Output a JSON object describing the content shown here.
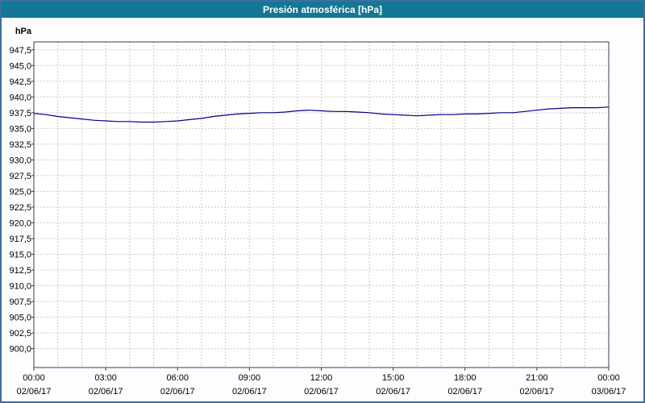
{
  "title": "Presión atmosférica [hPa]",
  "colors": {
    "titlebar_bg": "#137795",
    "titlebar_text": "#FFFFFF",
    "outer_border": "#3E6E9E",
    "page_bg": "#FDFDFF",
    "plot_bg": "#FFFFFF",
    "plot_border": "#3C3C50",
    "grid": "#C9C9C9",
    "axis_text": "#000000",
    "line": "#00008B"
  },
  "chart_data": {
    "type": "line",
    "title": "Presión atmosférica [hPa]",
    "ylabel": "hPa",
    "xlabel": "",
    "ylim": [
      897.0,
      948.75
    ],
    "xlim_hours": [
      0,
      24
    ],
    "grid": "dashed",
    "legend": "none",
    "y_ticks": [
      {
        "value": 947.5,
        "label": "947,5"
      },
      {
        "value": 945.0,
        "label": "945,0"
      },
      {
        "value": 942.5,
        "label": "942,5"
      },
      {
        "value": 940.0,
        "label": "940,0"
      },
      {
        "value": 937.5,
        "label": "937,5"
      },
      {
        "value": 935.0,
        "label": "935,0"
      },
      {
        "value": 932.5,
        "label": "932,5"
      },
      {
        "value": 930.0,
        "label": "930,0"
      },
      {
        "value": 927.5,
        "label": "927,5"
      },
      {
        "value": 925.0,
        "label": "925,0"
      },
      {
        "value": 922.5,
        "label": "922,5"
      },
      {
        "value": 920.0,
        "label": "920,0"
      },
      {
        "value": 917.5,
        "label": "917,5"
      },
      {
        "value": 915.0,
        "label": "915,0"
      },
      {
        "value": 912.5,
        "label": "912,5"
      },
      {
        "value": 910.0,
        "label": "910,0"
      },
      {
        "value": 907.5,
        "label": "907,5"
      },
      {
        "value": 905.0,
        "label": "905,0"
      },
      {
        "value": 902.5,
        "label": "902,5"
      },
      {
        "value": 900.0,
        "label": "900,0"
      }
    ],
    "x_ticks": [
      {
        "hour": 0,
        "time": "00:00",
        "date": "02/06/17"
      },
      {
        "hour": 3,
        "time": "03:00",
        "date": "02/06/17"
      },
      {
        "hour": 6,
        "time": "06:00",
        "date": "02/06/17"
      },
      {
        "hour": 9,
        "time": "09:00",
        "date": "02/06/17"
      },
      {
        "hour": 12,
        "time": "12:00",
        "date": "02/06/17"
      },
      {
        "hour": 15,
        "time": "15:00",
        "date": "02/06/17"
      },
      {
        "hour": 18,
        "time": "18:00",
        "date": "02/06/17"
      },
      {
        "hour": 21,
        "time": "21:00",
        "date": "02/06/17"
      },
      {
        "hour": 24,
        "time": "00:00",
        "date": "03/06/17"
      }
    ],
    "series": [
      {
        "name": "Presión atmosférica",
        "x_hours": [
          0,
          0.5,
          1,
          1.5,
          2,
          2.5,
          3,
          3.5,
          4,
          4.5,
          5,
          5.5,
          6,
          6.5,
          7,
          7.5,
          8,
          8.5,
          9,
          9.5,
          10,
          10.5,
          11,
          11.5,
          12,
          12.5,
          13,
          13.5,
          14,
          14.5,
          15,
          15.5,
          16,
          16.5,
          17,
          17.5,
          18,
          18.5,
          19,
          19.5,
          20,
          20.5,
          21,
          21.5,
          22,
          22.5,
          23,
          23.5,
          24
        ],
        "values": [
          937.4,
          937.2,
          936.9,
          936.7,
          936.5,
          936.3,
          936.2,
          936.1,
          936.1,
          936.0,
          936.0,
          936.1,
          936.2,
          936.4,
          936.6,
          936.9,
          937.1,
          937.3,
          937.4,
          937.5,
          937.5,
          937.6,
          937.8,
          937.9,
          937.8,
          937.7,
          937.7,
          937.6,
          937.5,
          937.3,
          937.2,
          937.1,
          937.0,
          937.1,
          937.2,
          937.2,
          937.3,
          937.3,
          937.4,
          937.5,
          937.5,
          937.7,
          937.9,
          938.1,
          938.2,
          938.3,
          938.3,
          938.3,
          938.4
        ]
      }
    ]
  }
}
